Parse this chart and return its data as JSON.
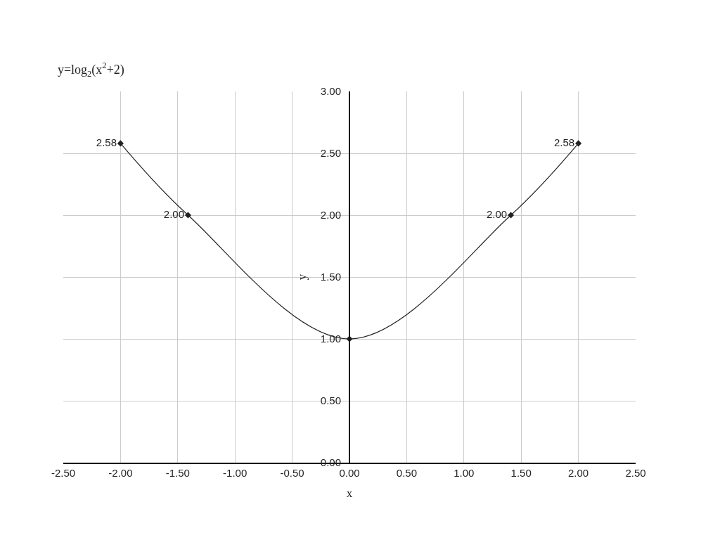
{
  "chart_data": {
    "type": "line",
    "title": "y=log$_{2}$(x$^{2}$+2)",
    "xlabel": "x",
    "ylabel": "y",
    "x": [
      -2,
      -1.41,
      0,
      1.41,
      2
    ],
    "series": [
      {
        "color": "#222222",
        "values": [
          2.58,
          2.0,
          1.0,
          2.0,
          2.58
        ],
        "value_labels": [
          "2.58",
          "2.00",
          null,
          "2.00",
          "2.58"
        ]
      }
    ],
    "xlim": [
      -2.5,
      2.5
    ],
    "ylim": [
      0,
      3
    ],
    "xticks": [
      {
        "value": -2.5,
        "label": "-2.50"
      },
      {
        "value": -2,
        "label": "-2.00"
      },
      {
        "value": -1.5,
        "label": "-1.50"
      },
      {
        "value": -1,
        "label": "-1.00"
      },
      {
        "value": -0.5,
        "label": "-0.50"
      },
      {
        "value": 0,
        "label": "0.00"
      },
      {
        "value": 0.5,
        "label": "0.50"
      },
      {
        "value": 1,
        "label": "1.00"
      },
      {
        "value": 1.5,
        "label": "1.50"
      },
      {
        "value": 2,
        "label": "2.00"
      },
      {
        "value": 2.5,
        "label": "2.50"
      }
    ],
    "yticks": [
      {
        "value": 0,
        "label": "0.00"
      },
      {
        "value": 0.5,
        "label": "0.50"
      },
      {
        "value": 1,
        "label": "1.00"
      },
      {
        "value": 1.5,
        "label": "1.50"
      },
      {
        "value": 2,
        "label": "2.00"
      },
      {
        "value": 2.5,
        "label": "2.50"
      },
      {
        "value": 3,
        "label": "3.00"
      }
    ],
    "grid": true,
    "marker": "diamond",
    "line_style": "solid"
  }
}
